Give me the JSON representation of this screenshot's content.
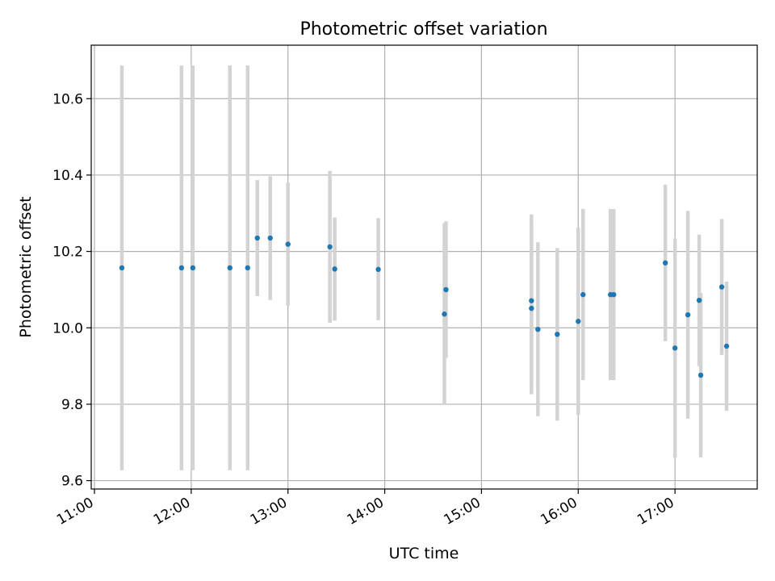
{
  "chart_data": {
    "type": "scatter",
    "title": "Photometric offset variation",
    "xlabel": "UTC time",
    "ylabel": "Photometric offset",
    "x_tick_labels": [
      "11:00",
      "12:00",
      "13:00",
      "14:00",
      "15:00",
      "16:00",
      "17:00"
    ],
    "y_tick_labels": [
      "9.6",
      "9.8",
      "10.0",
      "10.2",
      "10.4",
      "10.6"
    ],
    "y_ticks": [
      9.6,
      9.8,
      10.0,
      10.2,
      10.4,
      10.6
    ],
    "xlim": [
      "10:58",
      "17:51"
    ],
    "ylim": [
      9.578,
      10.74
    ],
    "grid": true,
    "colors": {
      "points": "#1f77b4",
      "error_bars": "#d3d3d3",
      "grid": "#b0b0b0"
    },
    "points": [
      {
        "time": "11:17",
        "y": 10.157,
        "y_low": 9.627,
        "y_high": 10.687
      },
      {
        "time": "11:54",
        "y": 10.157,
        "y_low": 9.627,
        "y_high": 10.687
      },
      {
        "time": "12:01",
        "y": 10.157,
        "y_low": 9.627,
        "y_high": 10.687
      },
      {
        "time": "12:24",
        "y": 10.157,
        "y_low": 9.627,
        "y_high": 10.687
      },
      {
        "time": "12:35",
        "y": 10.157,
        "y_low": 9.627,
        "y_high": 10.687
      },
      {
        "time": "12:41",
        "y": 10.235,
        "y_low": 10.083,
        "y_high": 10.387
      },
      {
        "time": "12:49",
        "y": 10.235,
        "y_low": 10.073,
        "y_high": 10.397
      },
      {
        "time": "13:00",
        "y": 10.219,
        "y_low": 10.058,
        "y_high": 10.38
      },
      {
        "time": "13:26",
        "y": 10.212,
        "y_low": 10.013,
        "y_high": 10.411
      },
      {
        "time": "13:29",
        "y": 10.154,
        "y_low": 10.019,
        "y_high": 10.289
      },
      {
        "time": "13:56",
        "y": 10.153,
        "y_low": 10.02,
        "y_high": 10.287
      },
      {
        "time": "14:37",
        "y": 10.036,
        "y_low": 9.798,
        "y_high": 10.274
      },
      {
        "time": "14:38",
        "y": 10.1,
        "y_low": 9.921,
        "y_high": 10.279
      },
      {
        "time": "15:31",
        "y": 10.071,
        "y_low": 9.846,
        "y_high": 10.297
      },
      {
        "time": "15:31",
        "y": 10.051,
        "y_low": 9.826,
        "y_high": 10.277
      },
      {
        "time": "15:35",
        "y": 9.996,
        "y_low": 9.769,
        "y_high": 10.224
      },
      {
        "time": "15:47",
        "y": 9.983,
        "y_low": 9.757,
        "y_high": 10.209
      },
      {
        "time": "16:00",
        "y": 10.017,
        "y_low": 9.772,
        "y_high": 10.262
      },
      {
        "time": "16:03",
        "y": 10.087,
        "y_low": 9.863,
        "y_high": 10.311
      },
      {
        "time": "16:20",
        "y": 10.087,
        "y_low": 9.863,
        "y_high": 10.311
      },
      {
        "time": "16:22",
        "y": 10.087,
        "y_low": 9.863,
        "y_high": 10.311
      },
      {
        "time": "16:54",
        "y": 10.17,
        "y_low": 9.965,
        "y_high": 10.375
      },
      {
        "time": "17:00",
        "y": 9.947,
        "y_low": 9.66,
        "y_high": 10.234
      },
      {
        "time": "17:08",
        "y": 10.034,
        "y_low": 9.762,
        "y_high": 10.306
      },
      {
        "time": "17:15",
        "y": 10.072,
        "y_low": 9.9,
        "y_high": 10.244
      },
      {
        "time": "17:16",
        "y": 9.876,
        "y_low": 9.661,
        "y_high": 10.091
      },
      {
        "time": "17:29",
        "y": 10.107,
        "y_low": 9.929,
        "y_high": 10.285
      },
      {
        "time": "17:32",
        "y": 9.952,
        "y_low": 9.783,
        "y_high": 10.121
      }
    ]
  }
}
